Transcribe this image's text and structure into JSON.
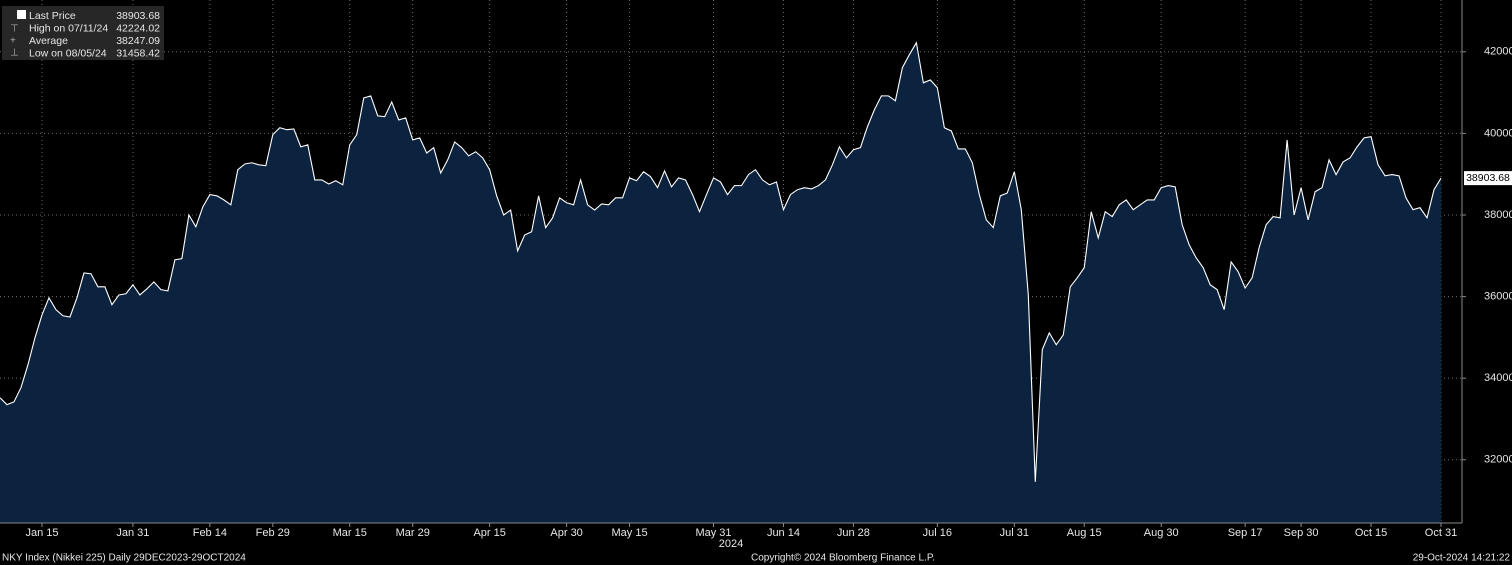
{
  "chart_data": {
    "type": "area",
    "legend": [
      {
        "label": "Last Price",
        "value": 38903.68
      },
      {
        "label": "High on 07/11/24",
        "value": 42224.02
      },
      {
        "label": "Average",
        "value": 38247.09
      },
      {
        "label": "Low on 08/05/24",
        "value": 31458.42
      }
    ],
    "xlabel": "2024",
    "footer_left": "NKY Index (Nikkei 225)  Daily 29DEC2023-29OCT2024",
    "footer_center": "Copyright© 2024 Bloomberg Finance L.P.",
    "footer_right": "29-Oct-2024 14:21:22",
    "categories": [
      null,
      null,
      null,
      null,
      null,
      null,
      "Jan 15",
      null,
      null,
      null,
      null,
      null,
      null,
      null,
      null,
      null,
      null,
      null,
      null,
      "Jan 31",
      null,
      null,
      null,
      null,
      null,
      null,
      null,
      null,
      null,
      null,
      "Feb 14",
      null,
      null,
      null,
      null,
      null,
      null,
      null,
      null,
      "Feb 29",
      null,
      null,
      null,
      null,
      null,
      null,
      null,
      null,
      null,
      null,
      "Mar 15",
      null,
      null,
      null,
      null,
      null,
      null,
      null,
      null,
      "Mar 29",
      null,
      null,
      null,
      null,
      null,
      null,
      null,
      null,
      null,
      null,
      "Apr 15",
      null,
      null,
      null,
      null,
      null,
      null,
      null,
      null,
      null,
      null,
      "Apr 30",
      null,
      null,
      null,
      null,
      null,
      null,
      null,
      null,
      "May 15",
      null,
      null,
      null,
      null,
      null,
      null,
      null,
      null,
      null,
      null,
      null,
      "May 31",
      null,
      null,
      null,
      null,
      null,
      null,
      null,
      null,
      null,
      "Jun 14",
      null,
      null,
      null,
      null,
      null,
      null,
      null,
      null,
      null,
      "Jun 28",
      null,
      null,
      null,
      null,
      null,
      null,
      null,
      null,
      null,
      null,
      null,
      "Jul 16",
      null,
      null,
      null,
      null,
      null,
      null,
      null,
      null,
      null,
      null,
      "Jul 31",
      null,
      null,
      null,
      null,
      null,
      null,
      null,
      null,
      null,
      "Aug 15",
      null,
      null,
      null,
      null,
      null,
      null,
      null,
      null,
      null,
      null,
      "Aug 30",
      null,
      null,
      null,
      null,
      null,
      null,
      null,
      null,
      null,
      null,
      null,
      "Sep 17",
      null,
      null,
      null,
      null,
      null,
      null,
      null,
      "Sep 30",
      null,
      null,
      null,
      null,
      null,
      null,
      null,
      null,
      null,
      "Oct 15",
      null,
      null,
      null,
      null,
      null,
      null,
      null,
      null,
      null,
      "Oct 31"
    ],
    "series": [
      {
        "name": "Last Price",
        "color": "#ffffff",
        "fill": "#0c2340",
        "values": [
          33520,
          33350,
          33420,
          33770,
          34330,
          34990,
          35550,
          35970,
          35680,
          35530,
          35500,
          35970,
          36580,
          36560,
          36240,
          36240,
          35800,
          36040,
          36070,
          36290,
          36040,
          36190,
          36360,
          36170,
          36140,
          36900,
          36930,
          38000,
          37710,
          38200,
          38500,
          38470,
          38370,
          38250,
          39110,
          39250,
          39280,
          39230,
          39210,
          39970,
          40140,
          40090,
          40110,
          39670,
          39720,
          38860,
          38860,
          38760,
          38840,
          38740,
          39720,
          39970,
          40870,
          40920,
          40430,
          40410,
          40770,
          40330,
          40380,
          39840,
          39890,
          39520,
          39650,
          39030,
          39350,
          39790,
          39650,
          39450,
          39550,
          39400,
          39110,
          38470,
          38000,
          38120,
          37120,
          37510,
          37590,
          38470,
          37690,
          37930,
          38420,
          38300,
          38250,
          38860,
          38250,
          38120,
          38270,
          38250,
          38420,
          38420,
          38910,
          38840,
          39060,
          38940,
          38670,
          39080,
          38690,
          38910,
          38860,
          38500,
          38080,
          38500,
          38910,
          38810,
          38500,
          38720,
          38720,
          38990,
          39110,
          38860,
          38740,
          38810,
          38130,
          38500,
          38620,
          38670,
          38640,
          38720,
          38860,
          39230,
          39670,
          39400,
          39600,
          39650,
          40160,
          40580,
          40920,
          40920,
          40800,
          41610,
          41930,
          42224.02,
          41240,
          41310,
          41120,
          40140,
          40060,
          39620,
          39620,
          39280,
          38500,
          37880,
          37690,
          38470,
          38540,
          39060,
          38130,
          36040,
          31458.42,
          34700,
          35110,
          34820,
          35060,
          36240,
          36460,
          36710,
          38080,
          37440,
          38080,
          37960,
          38250,
          38370,
          38130,
          38250,
          38370,
          38370,
          38670,
          38720,
          38690,
          37760,
          37270,
          36950,
          36710,
          36290,
          36170,
          35680,
          36850,
          36610,
          36210,
          36460,
          37200,
          37760,
          37960,
          37930,
          39840,
          38000,
          38670,
          37880,
          38570,
          38670,
          39350,
          38990,
          39300,
          39400,
          39670,
          39890,
          39920,
          39230,
          38960,
          38990,
          38960,
          38420,
          38130,
          38180,
          37930,
          38620,
          38903.68
        ]
      }
    ],
    "ylim": [
      30450,
      43270
    ],
    "yticks": [
      32000,
      34000,
      36000,
      38000,
      40000,
      42000
    ],
    "grid": true
  }
}
